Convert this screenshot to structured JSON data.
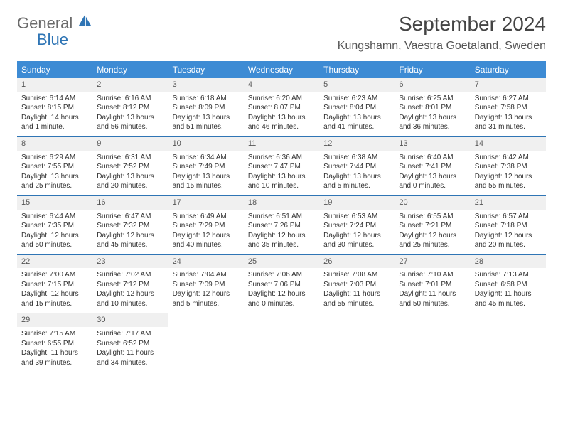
{
  "logo": {
    "line1": "General",
    "line2": "Blue"
  },
  "title": "September 2024",
  "location": "Kungshamn, Vaestra Goetaland, Sweden",
  "colors": {
    "headerBlue": "#3d8bd4",
    "borderBlue": "#2f75b5",
    "dayNumBg": "#f0f0f0",
    "textGray": "#6b6b6b"
  },
  "weekdays": [
    "Sunday",
    "Monday",
    "Tuesday",
    "Wednesday",
    "Thursday",
    "Friday",
    "Saturday"
  ],
  "weeks": [
    [
      {
        "n": "1",
        "sr": "Sunrise: 6:14 AM",
        "ss": "Sunset: 8:15 PM",
        "d1": "Daylight: 14 hours",
        "d2": "and 1 minute."
      },
      {
        "n": "2",
        "sr": "Sunrise: 6:16 AM",
        "ss": "Sunset: 8:12 PM",
        "d1": "Daylight: 13 hours",
        "d2": "and 56 minutes."
      },
      {
        "n": "3",
        "sr": "Sunrise: 6:18 AM",
        "ss": "Sunset: 8:09 PM",
        "d1": "Daylight: 13 hours",
        "d2": "and 51 minutes."
      },
      {
        "n": "4",
        "sr": "Sunrise: 6:20 AM",
        "ss": "Sunset: 8:07 PM",
        "d1": "Daylight: 13 hours",
        "d2": "and 46 minutes."
      },
      {
        "n": "5",
        "sr": "Sunrise: 6:23 AM",
        "ss": "Sunset: 8:04 PM",
        "d1": "Daylight: 13 hours",
        "d2": "and 41 minutes."
      },
      {
        "n": "6",
        "sr": "Sunrise: 6:25 AM",
        "ss": "Sunset: 8:01 PM",
        "d1": "Daylight: 13 hours",
        "d2": "and 36 minutes."
      },
      {
        "n": "7",
        "sr": "Sunrise: 6:27 AM",
        "ss": "Sunset: 7:58 PM",
        "d1": "Daylight: 13 hours",
        "d2": "and 31 minutes."
      }
    ],
    [
      {
        "n": "8",
        "sr": "Sunrise: 6:29 AM",
        "ss": "Sunset: 7:55 PM",
        "d1": "Daylight: 13 hours",
        "d2": "and 25 minutes."
      },
      {
        "n": "9",
        "sr": "Sunrise: 6:31 AM",
        "ss": "Sunset: 7:52 PM",
        "d1": "Daylight: 13 hours",
        "d2": "and 20 minutes."
      },
      {
        "n": "10",
        "sr": "Sunrise: 6:34 AM",
        "ss": "Sunset: 7:49 PM",
        "d1": "Daylight: 13 hours",
        "d2": "and 15 minutes."
      },
      {
        "n": "11",
        "sr": "Sunrise: 6:36 AM",
        "ss": "Sunset: 7:47 PM",
        "d1": "Daylight: 13 hours",
        "d2": "and 10 minutes."
      },
      {
        "n": "12",
        "sr": "Sunrise: 6:38 AM",
        "ss": "Sunset: 7:44 PM",
        "d1": "Daylight: 13 hours",
        "d2": "and 5 minutes."
      },
      {
        "n": "13",
        "sr": "Sunrise: 6:40 AM",
        "ss": "Sunset: 7:41 PM",
        "d1": "Daylight: 13 hours",
        "d2": "and 0 minutes."
      },
      {
        "n": "14",
        "sr": "Sunrise: 6:42 AM",
        "ss": "Sunset: 7:38 PM",
        "d1": "Daylight: 12 hours",
        "d2": "and 55 minutes."
      }
    ],
    [
      {
        "n": "15",
        "sr": "Sunrise: 6:44 AM",
        "ss": "Sunset: 7:35 PM",
        "d1": "Daylight: 12 hours",
        "d2": "and 50 minutes."
      },
      {
        "n": "16",
        "sr": "Sunrise: 6:47 AM",
        "ss": "Sunset: 7:32 PM",
        "d1": "Daylight: 12 hours",
        "d2": "and 45 minutes."
      },
      {
        "n": "17",
        "sr": "Sunrise: 6:49 AM",
        "ss": "Sunset: 7:29 PM",
        "d1": "Daylight: 12 hours",
        "d2": "and 40 minutes."
      },
      {
        "n": "18",
        "sr": "Sunrise: 6:51 AM",
        "ss": "Sunset: 7:26 PM",
        "d1": "Daylight: 12 hours",
        "d2": "and 35 minutes."
      },
      {
        "n": "19",
        "sr": "Sunrise: 6:53 AM",
        "ss": "Sunset: 7:24 PM",
        "d1": "Daylight: 12 hours",
        "d2": "and 30 minutes."
      },
      {
        "n": "20",
        "sr": "Sunrise: 6:55 AM",
        "ss": "Sunset: 7:21 PM",
        "d1": "Daylight: 12 hours",
        "d2": "and 25 minutes."
      },
      {
        "n": "21",
        "sr": "Sunrise: 6:57 AM",
        "ss": "Sunset: 7:18 PM",
        "d1": "Daylight: 12 hours",
        "d2": "and 20 minutes."
      }
    ],
    [
      {
        "n": "22",
        "sr": "Sunrise: 7:00 AM",
        "ss": "Sunset: 7:15 PM",
        "d1": "Daylight: 12 hours",
        "d2": "and 15 minutes."
      },
      {
        "n": "23",
        "sr": "Sunrise: 7:02 AM",
        "ss": "Sunset: 7:12 PM",
        "d1": "Daylight: 12 hours",
        "d2": "and 10 minutes."
      },
      {
        "n": "24",
        "sr": "Sunrise: 7:04 AM",
        "ss": "Sunset: 7:09 PM",
        "d1": "Daylight: 12 hours",
        "d2": "and 5 minutes."
      },
      {
        "n": "25",
        "sr": "Sunrise: 7:06 AM",
        "ss": "Sunset: 7:06 PM",
        "d1": "Daylight: 12 hours",
        "d2": "and 0 minutes."
      },
      {
        "n": "26",
        "sr": "Sunrise: 7:08 AM",
        "ss": "Sunset: 7:03 PM",
        "d1": "Daylight: 11 hours",
        "d2": "and 55 minutes."
      },
      {
        "n": "27",
        "sr": "Sunrise: 7:10 AM",
        "ss": "Sunset: 7:01 PM",
        "d1": "Daylight: 11 hours",
        "d2": "and 50 minutes."
      },
      {
        "n": "28",
        "sr": "Sunrise: 7:13 AM",
        "ss": "Sunset: 6:58 PM",
        "d1": "Daylight: 11 hours",
        "d2": "and 45 minutes."
      }
    ],
    [
      {
        "n": "29",
        "sr": "Sunrise: 7:15 AM",
        "ss": "Sunset: 6:55 PM",
        "d1": "Daylight: 11 hours",
        "d2": "and 39 minutes."
      },
      {
        "n": "30",
        "sr": "Sunrise: 7:17 AM",
        "ss": "Sunset: 6:52 PM",
        "d1": "Daylight: 11 hours",
        "d2": "and 34 minutes."
      },
      null,
      null,
      null,
      null,
      null
    ]
  ]
}
